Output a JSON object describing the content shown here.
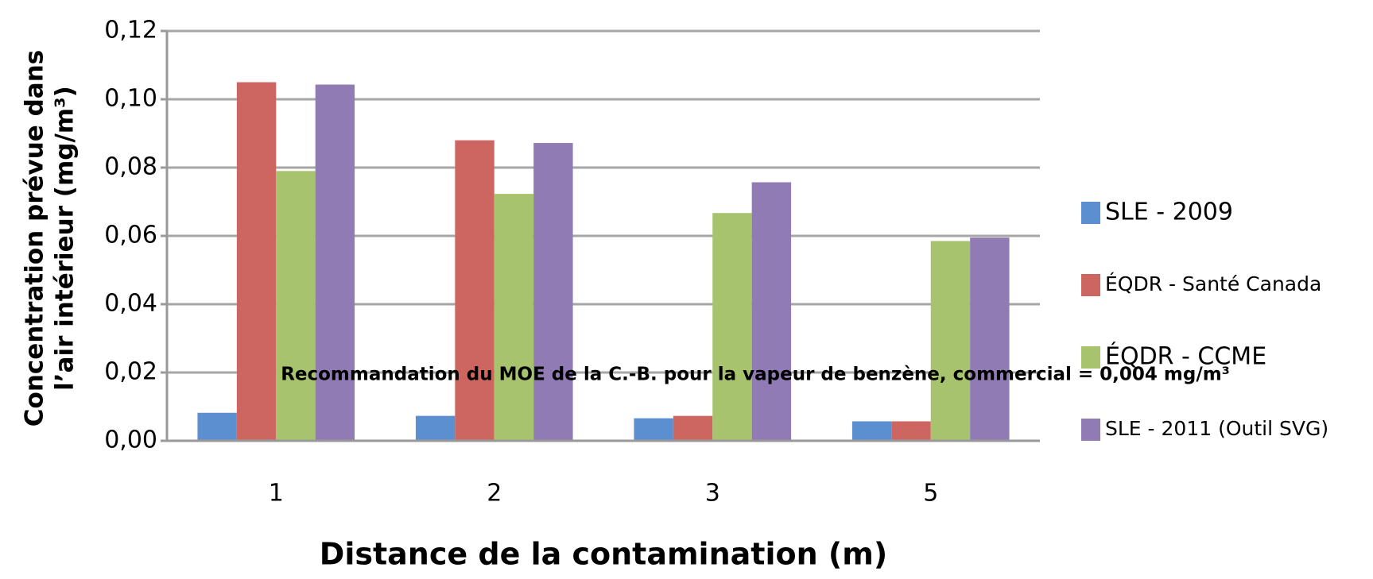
{
  "chart_data": {
    "type": "bar",
    "y_label": [
      "Concentration prévue dans",
      "l’air intérieur (mg/m³)"
    ],
    "x_label": "Distance de la contamination (m)",
    "annotation": "Recommandation du MOE de la C.-B. pour la vapeur de benzène, commercial = 0,004 mg/m³",
    "categories": [
      "1",
      "2",
      "3",
      "5"
    ],
    "series": [
      {
        "name": "SLE - 2009",
        "color": "#5b8fd0",
        "values": [
          0.0082,
          0.0073,
          0.0066,
          0.0057
        ]
      },
      {
        "name": "ÉQDR - Santé Canada",
        "color": "#cd6660",
        "values": [
          0.105,
          0.088,
          0.0073,
          0.0057
        ]
      },
      {
        "name": "ÉQDR - CCME",
        "color": "#a7c36d",
        "values": [
          0.079,
          0.0723,
          0.0667,
          0.0585
        ]
      },
      {
        "name": "SLE - 2011 (Outil SVG)",
        "color": "#917bb4",
        "values": [
          0.1043,
          0.0872,
          0.0757,
          0.0595
        ]
      }
    ],
    "ylim": [
      0,
      0.12
    ],
    "yticks": [
      {
        "value": 0,
        "label": "0,00"
      },
      {
        "value": 0.02,
        "label": "0,02"
      },
      {
        "value": 0.04,
        "label": "0,04"
      },
      {
        "value": 0.06,
        "label": "0,06"
      },
      {
        "value": 0.08,
        "label": "0,08"
      },
      {
        "value": 0.1,
        "label": "0,10"
      },
      {
        "value": 0.12,
        "label": "0,12"
      }
    ],
    "grid": true,
    "legend": "right"
  }
}
